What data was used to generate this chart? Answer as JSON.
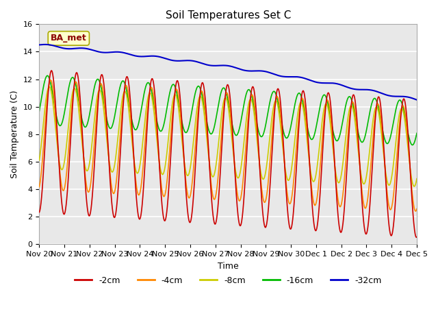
{
  "title": "Soil Temperatures Set C",
  "xlabel": "Time",
  "ylabel": "Soil Temperature (C)",
  "ylim": [
    0,
    16
  ],
  "yticks": [
    0,
    2,
    4,
    6,
    8,
    10,
    12,
    14,
    16
  ],
  "annotation": "BA_met",
  "bg_color": "#e8e8e8",
  "grid_color": "#ffffff",
  "colors": {
    "-2cm": "#cc0000",
    "-4cm": "#ff8800",
    "-8cm": "#cccc00",
    "-16cm": "#00bb00",
    "-32cm": "#0000cc"
  },
  "x_labels": [
    "Nov 20",
    "Nov 21",
    "Nov 22",
    "Nov 23",
    "Nov 24",
    "Nov 25",
    "Nov 26",
    "Nov 27",
    "Nov 28",
    "Nov 29",
    "Nov 30",
    "Dec 1",
    "Dec 2",
    "Dec 3",
    "Dec 4",
    "Dec 5"
  ],
  "n_days": 15,
  "figsize": [
    6.4,
    4.8
  ],
  "dpi": 100
}
